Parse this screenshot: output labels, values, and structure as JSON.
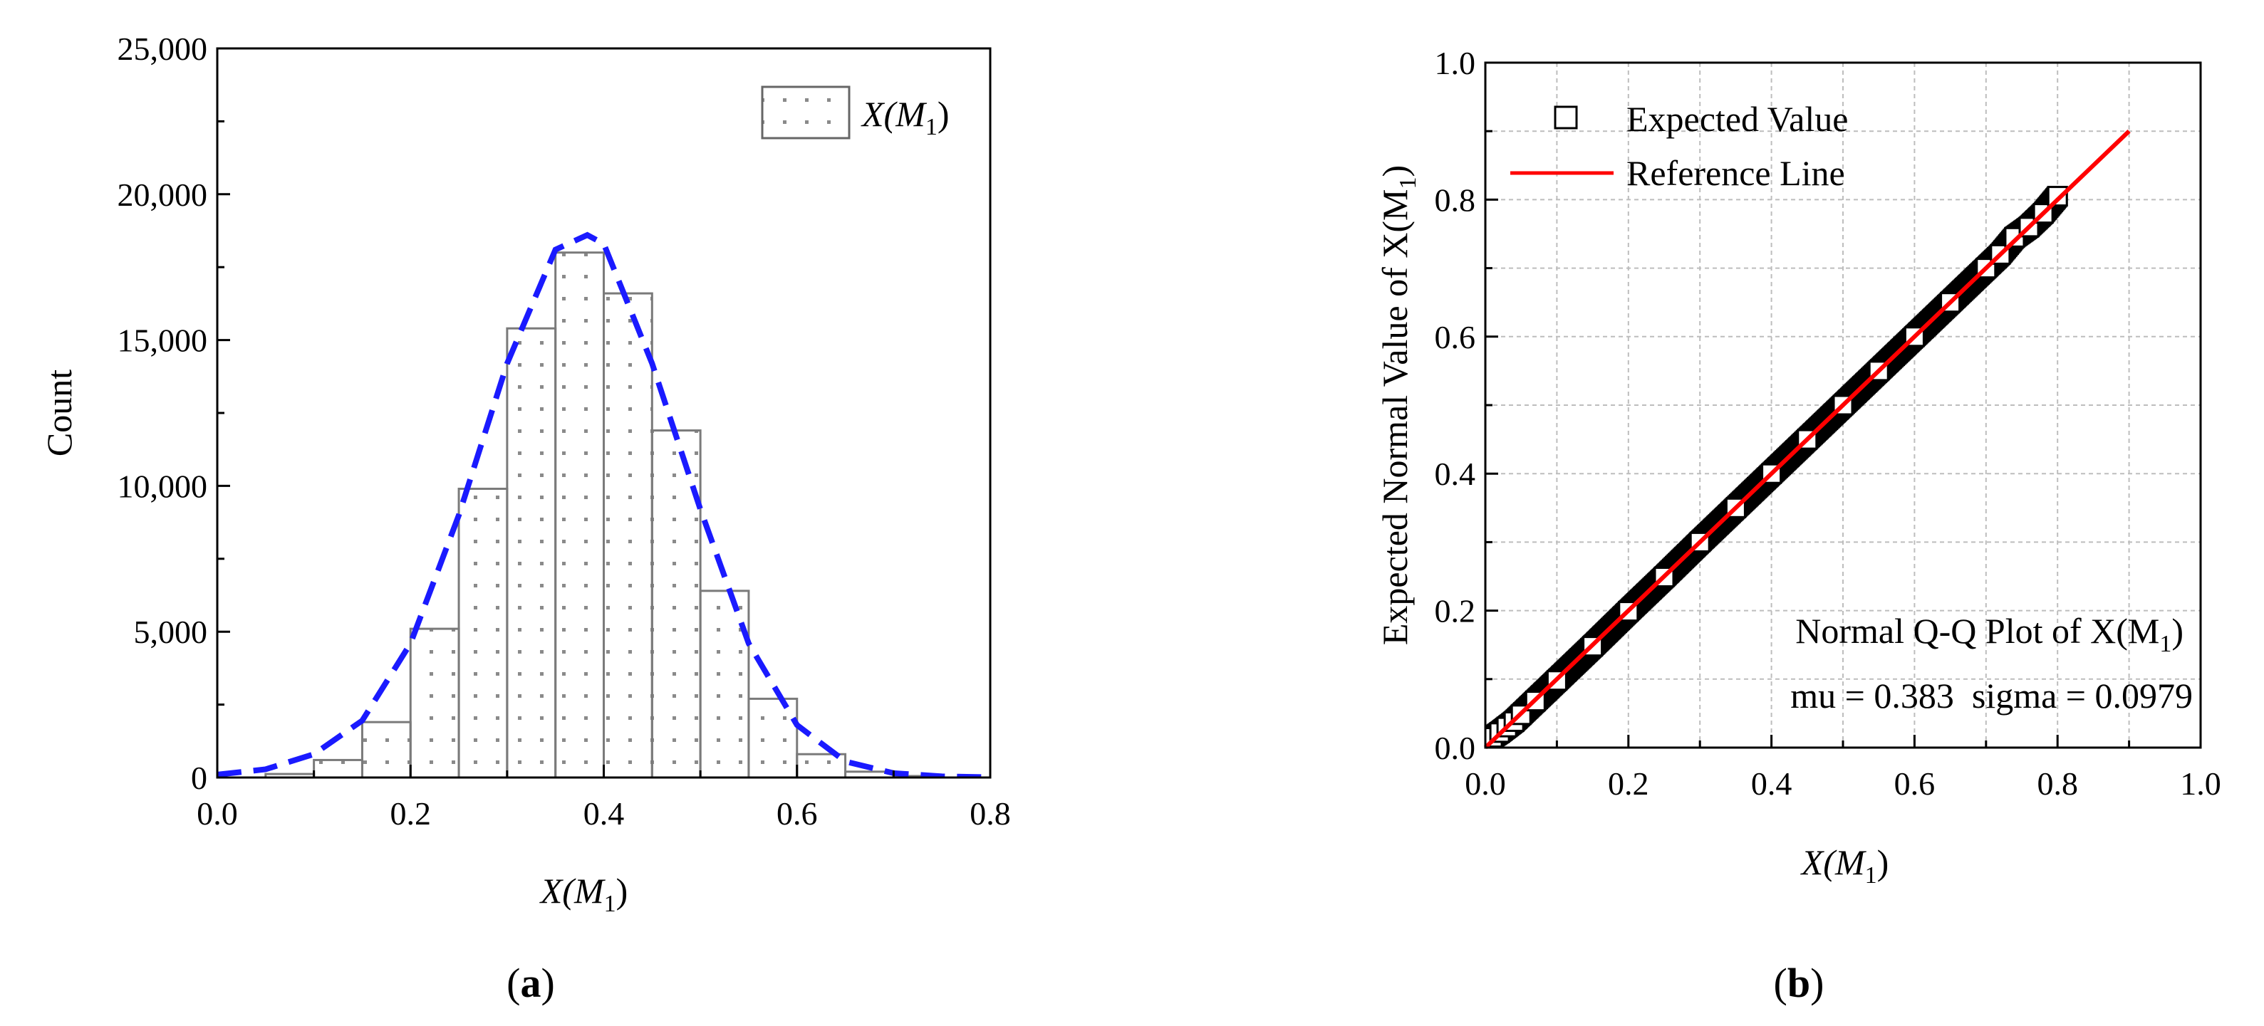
{
  "chart_data": [
    {
      "type": "bar",
      "panel_label_prefix": "(",
      "panel_label_letter": "a",
      "panel_label_suffix": ")",
      "xlabel": {
        "prefix": "X(M",
        "sub": "1",
        "suffix": ")"
      },
      "ylabel": "Count",
      "xlim": [
        0,
        0.8
      ],
      "ylim": [
        0,
        25000
      ],
      "x_ticks": [
        0.0,
        0.2,
        0.4,
        0.6,
        0.8
      ],
      "x_tick_labels": [
        "0.0",
        "0.2",
        "0.4",
        "0.6",
        "0.8"
      ],
      "y_ticks": [
        0,
        5000,
        10000,
        15000,
        20000,
        25000
      ],
      "y_tick_labels": [
        "0",
        "5,000",
        "10,000",
        "15,000",
        "20,000",
        "25,000"
      ],
      "bin_width": 0.05,
      "bin_starts": [
        0.05,
        0.1,
        0.15,
        0.2,
        0.25,
        0.3,
        0.35,
        0.4,
        0.45,
        0.5,
        0.55,
        0.6,
        0.65,
        0.7
      ],
      "values": [
        120,
        600,
        1900,
        5100,
        9900,
        15400,
        18000,
        16600,
        11900,
        6400,
        2700,
        800,
        200,
        50
      ],
      "legend": {
        "prefix": "X(M",
        "sub": "1",
        "suffix": ")",
        "position": "top-right"
      },
      "fit_curve": {
        "style": "dashed",
        "color": "#1a1aff",
        "x": [
          0.0,
          0.05,
          0.1,
          0.15,
          0.2,
          0.25,
          0.3,
          0.35,
          0.383,
          0.4,
          0.45,
          0.5,
          0.55,
          0.6,
          0.65,
          0.7,
          0.75,
          0.8
        ],
        "y": [
          100,
          280,
          800,
          1950,
          4600,
          9000,
          14200,
          18100,
          18600,
          18300,
          14200,
          9200,
          4600,
          1800,
          550,
          150,
          40,
          10
        ]
      }
    },
    {
      "type": "scatter",
      "panel_label_prefix": "(",
      "panel_label_letter": "b",
      "panel_label_suffix": ")",
      "xlabel": {
        "prefix": "X(M",
        "sub": "1",
        "suffix": ")"
      },
      "ylabel": {
        "prefix": "Expected Normal Value of X(M",
        "sub": "1",
        "suffix": ")"
      },
      "xlim": [
        0,
        1.0
      ],
      "ylim": [
        0,
        1.0
      ],
      "x_ticks": [
        0.0,
        0.2,
        0.4,
        0.6,
        0.8,
        1.0
      ],
      "x_tick_labels": [
        "0.0",
        "0.2",
        "0.4",
        "0.6",
        "0.8",
        "1.0"
      ],
      "y_ticks": [
        0.0,
        0.2,
        0.4,
        0.6,
        0.8,
        1.0
      ],
      "y_tick_labels": [
        "0.0",
        "0.2",
        "0.4",
        "0.6",
        "0.8",
        "1.0"
      ],
      "grid": true,
      "legend": {
        "position": "top-left",
        "entries": [
          {
            "name": "Expected Value",
            "marker": "square"
          },
          {
            "name": "Reference Line",
            "color": "#ff0000"
          }
        ]
      },
      "series": [
        {
          "name": "Expected Value",
          "x": [
            0.01,
            0.02,
            0.03,
            0.04,
            0.05,
            0.07,
            0.1,
            0.15,
            0.2,
            0.25,
            0.3,
            0.35,
            0.4,
            0.45,
            0.5,
            0.55,
            0.6,
            0.65,
            0.7,
            0.72,
            0.74,
            0.76,
            0.78,
            0.8
          ],
          "y": [
            0.015,
            0.022,
            0.03,
            0.038,
            0.048,
            0.068,
            0.098,
            0.148,
            0.199,
            0.249,
            0.3,
            0.35,
            0.4,
            0.45,
            0.5,
            0.55,
            0.6,
            0.65,
            0.7,
            0.72,
            0.745,
            0.76,
            0.78,
            0.805
          ]
        },
        {
          "name": "Reference Line",
          "x": [
            0.0,
            0.9
          ],
          "y": [
            0.0,
            0.9
          ]
        }
      ],
      "annotation": {
        "title_prefix": "Normal Q-Q Plot of X(M",
        "title_sub": "1",
        "title_suffix": ")",
        "stats": "mu = 0.383  sigma = 0.0979"
      }
    }
  ]
}
